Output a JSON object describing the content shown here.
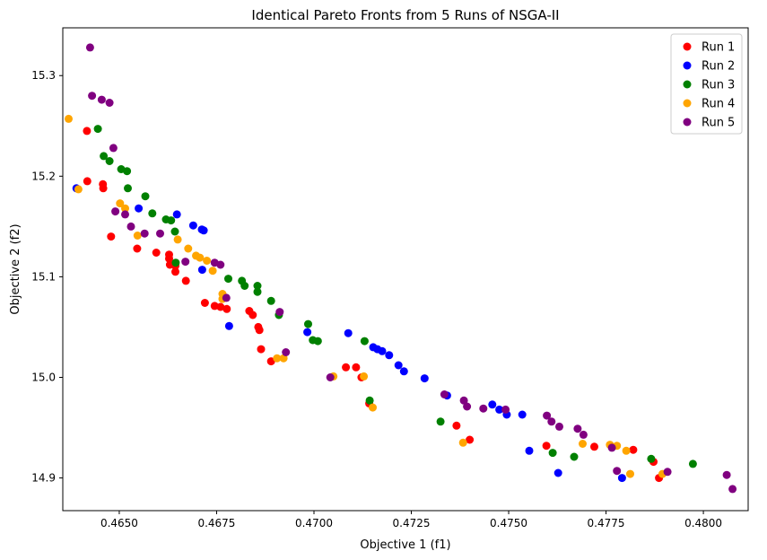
{
  "chart_data": {
    "type": "scatter",
    "title": "Identical Pareto Fronts from 5 Runs of NSGA-II",
    "xlabel": "Objective 1 (f1)",
    "ylabel": "Objective 2 (f2)",
    "xlim": [
      0.46355,
      0.48115
    ],
    "ylim": [
      14.8675,
      15.3475
    ],
    "x_ticks": [
      {
        "value": 0.465,
        "label": "0.4650"
      },
      {
        "value": 0.4675,
        "label": "0.4675"
      },
      {
        "value": 0.47,
        "label": "0.4700"
      },
      {
        "value": 0.4725,
        "label": "0.4725"
      },
      {
        "value": 0.475,
        "label": "0.4750"
      },
      {
        "value": 0.4775,
        "label": "0.4775"
      },
      {
        "value": 0.48,
        "label": "0.4800"
      }
    ],
    "y_ticks": [
      {
        "value": 14.9,
        "label": "14.9"
      },
      {
        "value": 15.0,
        "label": "15.0"
      },
      {
        "value": 15.1,
        "label": "15.1"
      },
      {
        "value": 15.2,
        "label": "15.2"
      },
      {
        "value": 15.3,
        "label": "15.3"
      }
    ],
    "grid": false,
    "legend": {
      "position": "top-right"
    },
    "series": [
      {
        "name": "Run 1",
        "color": "#ff0000",
        "points": [
          [
            0.46417,
            15.245
          ],
          [
            0.46418,
            15.195
          ],
          [
            0.46458,
            15.192
          ],
          [
            0.46459,
            15.188
          ],
          [
            0.46479,
            15.14
          ],
          [
            0.46546,
            15.128
          ],
          [
            0.46595,
            15.124
          ],
          [
            0.46628,
            15.122
          ],
          [
            0.46628,
            15.118
          ],
          [
            0.4663,
            15.112
          ],
          [
            0.46644,
            15.111
          ],
          [
            0.46644,
            15.105
          ],
          [
            0.46671,
            15.096
          ],
          [
            0.4672,
            15.074
          ],
          [
            0.46745,
            15.071
          ],
          [
            0.4676,
            15.07
          ],
          [
            0.46776,
            15.068
          ],
          [
            0.46834,
            15.066
          ],
          [
            0.46843,
            15.062
          ],
          [
            0.46857,
            15.05
          ],
          [
            0.4686,
            15.047
          ],
          [
            0.46864,
            15.028
          ],
          [
            0.4689,
            15.016
          ],
          [
            0.47082,
            15.01
          ],
          [
            0.47108,
            15.01
          ],
          [
            0.47122,
            15.0
          ],
          [
            0.47142,
            14.974
          ],
          [
            0.47366,
            14.952
          ],
          [
            0.474,
            14.938
          ],
          [
            0.47597,
            14.932
          ],
          [
            0.4772,
            14.931
          ],
          [
            0.4782,
            14.928
          ],
          [
            0.47872,
            14.916
          ],
          [
            0.47886,
            14.9
          ]
        ]
      },
      {
        "name": "Run 2",
        "color": "#0000ff",
        "points": [
          [
            0.4639,
            15.188
          ],
          [
            0.4655,
            15.168
          ],
          [
            0.46648,
            15.162
          ],
          [
            0.4669,
            15.151
          ],
          [
            0.46712,
            15.147
          ],
          [
            0.46717,
            15.146
          ],
          [
            0.46713,
            15.107
          ],
          [
            0.46782,
            15.051
          ],
          [
            0.46983,
            15.045
          ],
          [
            0.47088,
            15.044
          ],
          [
            0.47152,
            15.03
          ],
          [
            0.47163,
            15.028
          ],
          [
            0.47175,
            15.026
          ],
          [
            0.47193,
            15.022
          ],
          [
            0.47217,
            15.012
          ],
          [
            0.47231,
            15.006
          ],
          [
            0.47284,
            14.999
          ],
          [
            0.47342,
            14.982
          ],
          [
            0.47458,
            14.973
          ],
          [
            0.47476,
            14.968
          ],
          [
            0.47495,
            14.963
          ],
          [
            0.47535,
            14.963
          ],
          [
            0.47553,
            14.927
          ],
          [
            0.47627,
            14.905
          ],
          [
            0.47791,
            14.9
          ]
        ]
      },
      {
        "name": "Run 3",
        "color": "#008000",
        "points": [
          [
            0.46445,
            15.247
          ],
          [
            0.4646,
            15.22
          ],
          [
            0.46475,
            15.215
          ],
          [
            0.46505,
            15.207
          ],
          [
            0.4652,
            15.205
          ],
          [
            0.46522,
            15.188
          ],
          [
            0.46567,
            15.18
          ],
          [
            0.46585,
            15.163
          ],
          [
            0.4662,
            15.157
          ],
          [
            0.46633,
            15.156
          ],
          [
            0.46643,
            15.145
          ],
          [
            0.46645,
            15.114
          ],
          [
            0.4678,
            15.098
          ],
          [
            0.46815,
            15.096
          ],
          [
            0.46822,
            15.091
          ],
          [
            0.46855,
            15.091
          ],
          [
            0.46855,
            15.085
          ],
          [
            0.4689,
            15.076
          ],
          [
            0.4691,
            15.062
          ],
          [
            0.46985,
            15.053
          ],
          [
            0.46997,
            15.037
          ],
          [
            0.4701,
            15.036
          ],
          [
            0.4713,
            15.036
          ],
          [
            0.47143,
            14.977
          ],
          [
            0.47325,
            14.956
          ],
          [
            0.47613,
            14.925
          ],
          [
            0.47668,
            14.921
          ],
          [
            0.47866,
            14.919
          ],
          [
            0.47973,
            14.914
          ]
        ]
      },
      {
        "name": "Run 4",
        "color": "#ffa500",
        "points": [
          [
            0.4637,
            15.257
          ],
          [
            0.46395,
            15.187
          ],
          [
            0.46502,
            15.173
          ],
          [
            0.46515,
            15.168
          ],
          [
            0.46547,
            15.141
          ],
          [
            0.4665,
            15.137
          ],
          [
            0.46677,
            15.128
          ],
          [
            0.46697,
            15.121
          ],
          [
            0.46707,
            15.119
          ],
          [
            0.46725,
            15.116
          ],
          [
            0.4674,
            15.106
          ],
          [
            0.46765,
            15.083
          ],
          [
            0.46765,
            15.078
          ],
          [
            0.46905,
            15.019
          ],
          [
            0.46922,
            15.019
          ],
          [
            0.4705,
            15.001
          ],
          [
            0.47128,
            15.001
          ],
          [
            0.47151,
            14.97
          ],
          [
            0.47383,
            14.935
          ],
          [
            0.4769,
            14.934
          ],
          [
            0.4776,
            14.933
          ],
          [
            0.47778,
            14.932
          ],
          [
            0.47802,
            14.927
          ],
          [
            0.47812,
            14.904
          ],
          [
            0.47895,
            14.904
          ]
        ]
      },
      {
        "name": "Run 5",
        "color": "#800080",
        "points": [
          [
            0.46425,
            15.328
          ],
          [
            0.4643,
            15.28
          ],
          [
            0.46455,
            15.276
          ],
          [
            0.46475,
            15.273
          ],
          [
            0.46485,
            15.228
          ],
          [
            0.4649,
            15.165
          ],
          [
            0.46515,
            15.162
          ],
          [
            0.4653,
            15.15
          ],
          [
            0.46565,
            15.143
          ],
          [
            0.46605,
            15.143
          ],
          [
            0.4667,
            15.115
          ],
          [
            0.46745,
            15.114
          ],
          [
            0.4676,
            15.112
          ],
          [
            0.46775,
            15.079
          ],
          [
            0.46912,
            15.065
          ],
          [
            0.46928,
            15.025
          ],
          [
            0.47042,
            15.0
          ],
          [
            0.47335,
            14.983
          ],
          [
            0.47385,
            14.977
          ],
          [
            0.47393,
            14.971
          ],
          [
            0.47435,
            14.969
          ],
          [
            0.47492,
            14.968
          ],
          [
            0.47598,
            14.962
          ],
          [
            0.4761,
            14.956
          ],
          [
            0.4763,
            14.951
          ],
          [
            0.47677,
            14.949
          ],
          [
            0.47692,
            14.943
          ],
          [
            0.47765,
            14.93
          ],
          [
            0.47778,
            14.907
          ],
          [
            0.47908,
            14.906
          ],
          [
            0.4806,
            14.903
          ],
          [
            0.48075,
            14.889
          ]
        ]
      }
    ]
  }
}
